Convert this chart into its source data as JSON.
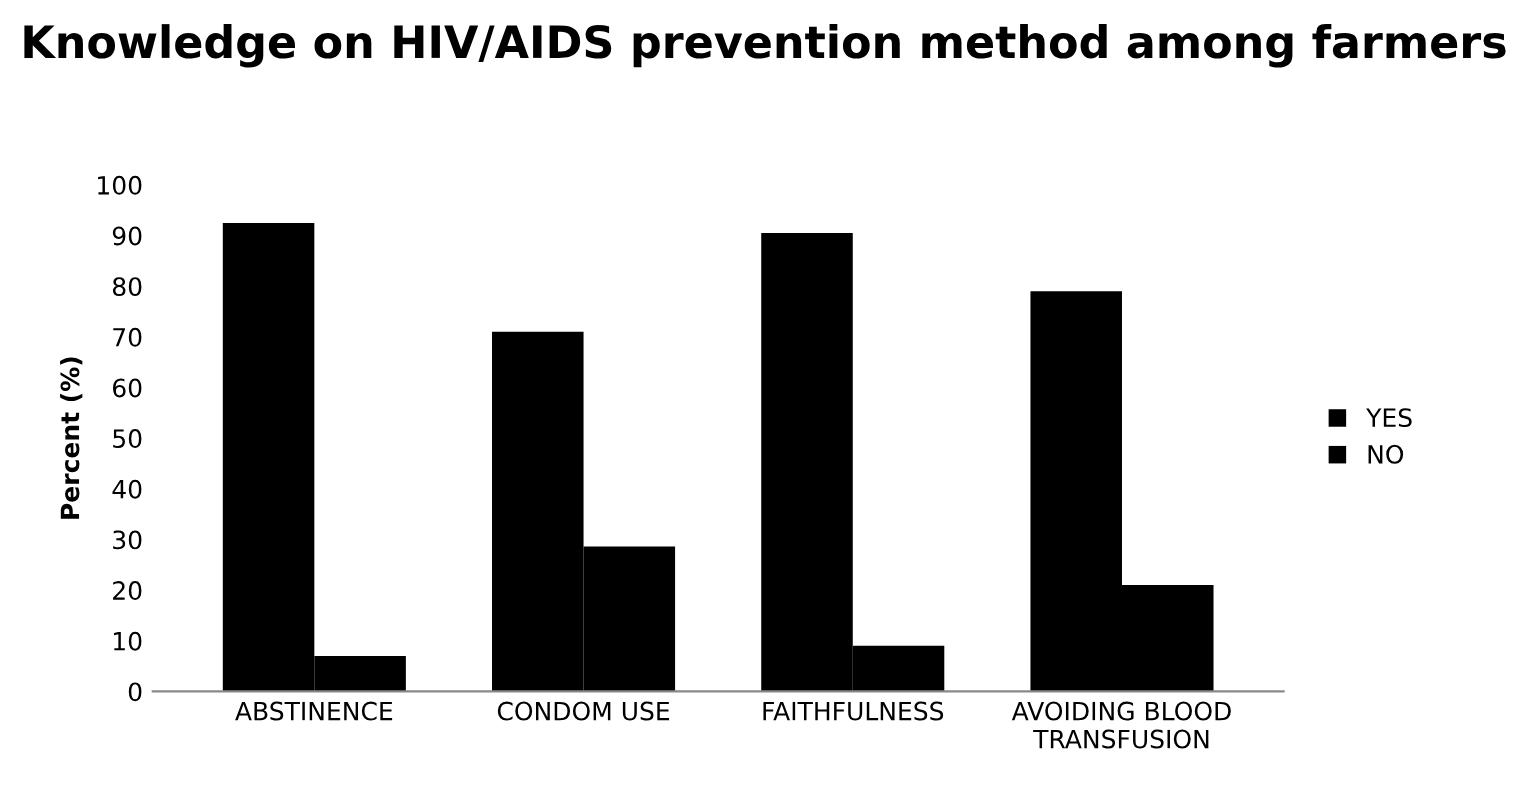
{
  "chart_data": {
    "type": "bar",
    "title": "Knowledge on HIV/AIDS prevention method among farmers",
    "ylabel": "Percent (%)",
    "categories": [
      "ABSTINENCE",
      "CONDOM USE",
      "FAITHFULNESS",
      "AVOIDING BLOOD\nTRANSFUSION"
    ],
    "series": [
      {
        "name": "YES",
        "color": "#000000",
        "values": [
          92.5,
          71,
          90.5,
          79
        ]
      },
      {
        "name": "NO",
        "color": "#000000",
        "values": [
          7,
          28.6,
          9,
          21
        ]
      }
    ],
    "ylim": [
      0,
      100
    ],
    "yticks": [
      0,
      10,
      20,
      30,
      40,
      50,
      60,
      70,
      80,
      90,
      100
    ],
    "grid": false,
    "legend": "right"
  }
}
